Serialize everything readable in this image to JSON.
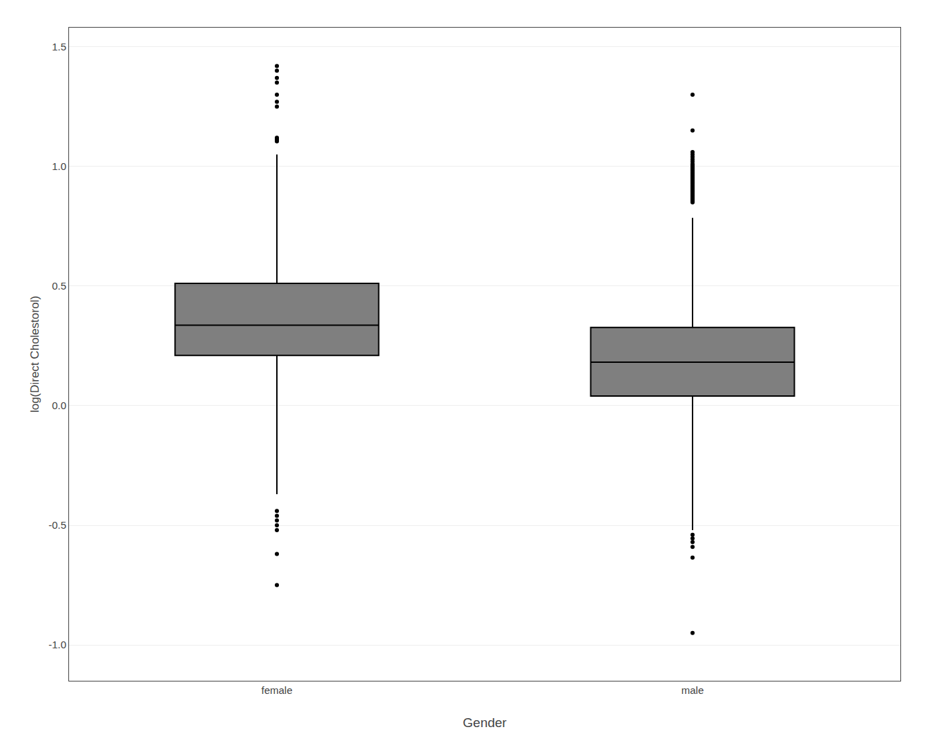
{
  "chart_data": {
    "type": "box",
    "xlabel": "Gender",
    "ylabel": "log(Direct Cholestorol)",
    "categories": [
      "female",
      "male"
    ],
    "boxes": [
      {
        "median": 0.336,
        "q1": 0.21,
        "q3": 0.511,
        "whisker_low": -0.37,
        "whisker_high": 1.05,
        "outliers_high": [
          1.105,
          1.11,
          1.115,
          1.12,
          1.25,
          1.27,
          1.3,
          1.35,
          1.37,
          1.4,
          1.42
        ],
        "outliers_low": [
          -0.44,
          -0.46,
          -0.48,
          -0.5,
          -0.52,
          -0.62,
          -0.75
        ]
      },
      {
        "median": 0.182,
        "q1": 0.04,
        "q3": 0.327,
        "whisker_low": -0.52,
        "whisker_high": 0.785,
        "outliers_high": [
          0.85,
          0.855,
          0.86,
          0.865,
          0.87,
          0.875,
          0.88,
          0.885,
          0.89,
          0.895,
          0.9,
          0.905,
          0.91,
          0.915,
          0.92,
          0.925,
          0.93,
          0.935,
          0.94,
          0.945,
          0.95,
          0.955,
          0.96,
          0.965,
          0.97,
          0.975,
          0.98,
          0.985,
          0.99,
          0.995,
          1.0,
          1.005,
          1.01,
          1.02,
          1.03,
          1.04,
          1.05,
          1.06,
          1.15,
          1.3
        ],
        "outliers_low": [
          -0.54,
          -0.555,
          -0.57,
          -0.59,
          -0.635,
          -0.95
        ]
      }
    ],
    "color": "#000000",
    "ylim": [
      -1.15,
      1.58
    ],
    "yticks": [
      {
        "value": -1.0,
        "label": "-1.0"
      },
      -0.5,
      {
        "value": 0.0,
        "label": "0.0"
      },
      0.5,
      {
        "value": 1.0,
        "label": "1.0"
      },
      1.5
    ],
    "grid": true
  }
}
